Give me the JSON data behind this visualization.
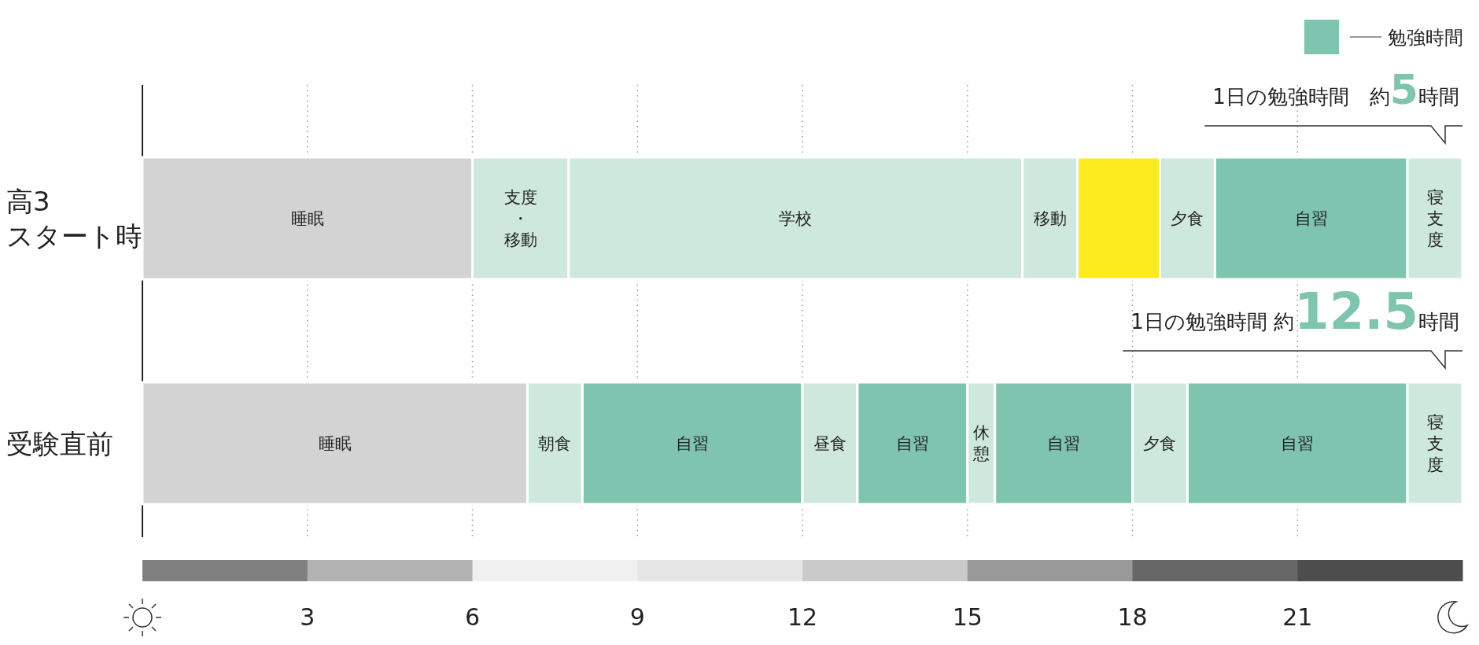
{
  "chart_data": {
    "type": "bar",
    "orientation": "horizontal",
    "stacked": true,
    "categories": [
      "高3\nスタート時",
      "受験直前"
    ],
    "xlim": [
      0,
      24
    ],
    "xticks": [
      3,
      6,
      9,
      12,
      15,
      18,
      21
    ],
    "grid": "x",
    "legend": "top right",
    "annotations": [
      "1日の勉強時間　約5時間",
      "1日の勉強時間  約12.5時間"
    ],
    "series": [
      {
        "values": [
          6,
          7
        ],
        "colors": [
          "#d3d3d3",
          "#d3d3d3"
        ],
        "value_labels": [
          "睡眠",
          "睡眠"
        ]
      },
      {
        "values": [
          1.75,
          1
        ],
        "colors": [
          "#cfe8de",
          "#cfe8de"
        ],
        "value_labels": [
          "支度・移動",
          "朝食"
        ]
      },
      {
        "values": [
          8.25,
          4
        ],
        "colors": [
          "#cfe8de",
          "#7fc4ae"
        ],
        "value_labels": [
          "学校",
          "自習"
        ]
      },
      {
        "values": [
          1,
          1
        ],
        "colors": [
          "#cfe8de",
          "#cfe8de"
        ],
        "value_labels": [
          "移動",
          "昼食"
        ]
      },
      {
        "values": [
          1.5,
          2
        ],
        "colors": [
          "#fcea1e",
          "#7fc4ae"
        ],
        "value_labels": [
          null,
          "自習"
        ]
      },
      {
        "values": [
          1,
          0.5
        ],
        "colors": [
          "#cfe8de",
          "#cfe8de"
        ],
        "value_labels": [
          "夕食",
          "休憩"
        ]
      },
      {
        "name": "勉強時間",
        "color": "#7fc4ae",
        "values": [
          3.5,
          2.5
        ],
        "value_labels": [
          "自習",
          "自習"
        ]
      },
      {
        "values": [
          1,
          1
        ],
        "colors": [
          "#cfe8de",
          "#cfe8de"
        ],
        "value_labels": [
          "寝支度",
          "夕食"
        ]
      },
      {
        "values": [
          null,
          4
        ],
        "color": "#7fc4ae",
        "value_labels": [
          null,
          "自習"
        ]
      },
      {
        "values": [
          null,
          1
        ],
        "color": "#cfe8de",
        "value_labels": [
          null,
          "寝支度"
        ]
      }
    ]
  }
}
